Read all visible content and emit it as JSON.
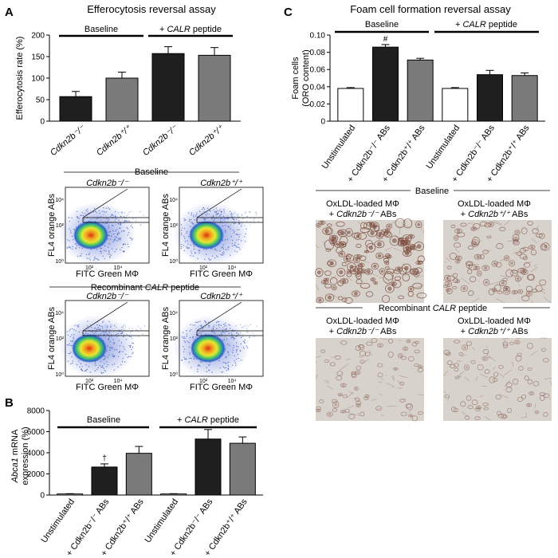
{
  "colors": {
    "dark_bar": "#1f1f1f",
    "gray_bar": "#7a7a7a",
    "white_bar": "#ffffff",
    "micro_bg": "#d8d2cc",
    "micro_stain": "#7a4a3a"
  },
  "panel_a": {
    "letter": "A",
    "title": "Efferocytosis reversal assay",
    "group_baseline": "Baseline",
    "group_peptide_prefix": "+ ",
    "group_peptide_gene": "CALR",
    "group_peptide_suffix": " peptide",
    "flow": {
      "baseline_header": "Baseline",
      "peptide_header_prefix": "Recombinant ",
      "peptide_header_gene": "CALR",
      "peptide_header_suffix": " peptide",
      "genotype_left": "Cdkn2b⁻/⁻",
      "genotype_right": "Cdkn2b⁺/⁺",
      "ylabel": "FL4 orange ABs",
      "xlabel": "FITC Green MΦ",
      "tick_104": "10⁴",
      "tick_102": "10²",
      "tick_100": "10⁰"
    }
  },
  "panel_b": {
    "letter": "B",
    "group_baseline": "Baseline",
    "group_peptide_prefix": "+ ",
    "group_peptide_gene": "CALR",
    "group_peptide_suffix": " peptide",
    "ylabel_gene": "Abca1",
    "ylabel_rest": " mRNA",
    "ylabel_line2": "expression (%)",
    "dagger": "†"
  },
  "panel_c": {
    "letter": "C",
    "title": "Foam cell formation reversal assay",
    "group_baseline": "Baseline",
    "group_peptide_prefix": "+ ",
    "group_peptide_gene": "CALR",
    "group_peptide_suffix": " peptide",
    "ylabel_line1": "Foam cells",
    "ylabel_line2": "(ORO content)",
    "hash": "#",
    "micro": {
      "baseline_header": "Baseline",
      "peptide_header_prefix": "Recombinant ",
      "peptide_header_gene": "CALR",
      "peptide_header_suffix": " peptide",
      "caption_line1": "OxLDL-loaded MΦ",
      "caption_left_line2_prefix": "+ ",
      "caption_left_line2_gene": "Cdkn2b⁻/⁻",
      "caption_left_line2_suffix": " ABs",
      "caption_right_line2_prefix": "+ ",
      "caption_right_line2_gene": "Cdkn2b⁺/⁺",
      "caption_right_line2_suffix": " ABs"
    }
  },
  "chart_data": [
    {
      "type": "bar",
      "panel": "A",
      "title": "Efferocytosis reversal assay",
      "ylabel": "Efferocytosis rate (%)",
      "ylim": [
        0,
        200
      ],
      "yticks": [
        "0",
        "50",
        "100",
        "150",
        "200"
      ],
      "categories": [
        "Cdkn2b⁻/⁻",
        "Cdkn2b⁺/⁺",
        "Cdkn2b⁻/⁻",
        "Cdkn2b⁺/⁺"
      ],
      "values": [
        57,
        100,
        157,
        153
      ],
      "errors": [
        12,
        14,
        16,
        18
      ],
      "bar_colors": [
        "#1f1f1f",
        "#7a7a7a",
        "#1f1f1f",
        "#7a7a7a"
      ],
      "groups": [
        "Baseline",
        "+ CALR peptide"
      ]
    },
    {
      "type": "bar",
      "panel": "B",
      "ylabel": "Abca1 mRNA expression (%)",
      "ylim": [
        0,
        8000
      ],
      "yticks": [
        "0",
        "2000",
        "4000",
        "6000",
        "8000"
      ],
      "categories": [
        "Unstimulated",
        "+ Cdkn2b⁻/⁻ ABs",
        "+ Cdkn2b⁺/⁺ ABs",
        "Unstimulated",
        "+ Cdkn2b⁻/⁻ ABs",
        "+ Cdkn2b⁺/⁺ ABs"
      ],
      "values": [
        100,
        2650,
        3950,
        100,
        5300,
        4900
      ],
      "errors": [
        30,
        300,
        650,
        30,
        900,
        600
      ],
      "bar_colors": [
        "#ffffff",
        "#1f1f1f",
        "#7a7a7a",
        "#ffffff",
        "#1f1f1f",
        "#7a7a7a"
      ],
      "groups": [
        "Baseline",
        "+ CALR peptide"
      ]
    },
    {
      "type": "bar",
      "panel": "C",
      "title": "Foam cell formation reversal assay",
      "ylabel": "Foam cells (ORO content)",
      "ylim": [
        0,
        0.1
      ],
      "yticks": [
        "0",
        "0.02",
        "0.04",
        "0.06",
        "0.08",
        "0.10"
      ],
      "categories": [
        "Unstimulated",
        "+ Cdkn2b⁻/⁻ ABs",
        "+ Cdkn2b⁺/⁺ ABs",
        "Unstimulated",
        "+ Cdkn2b⁻/⁻ ABs",
        "+ Cdkn2b⁺/⁺ ABs"
      ],
      "values": [
        0.038,
        0.086,
        0.071,
        0.038,
        0.054,
        0.053
      ],
      "errors": [
        0.001,
        0.003,
        0.002,
        0.001,
        0.005,
        0.003
      ],
      "bar_colors": [
        "#ffffff",
        "#1f1f1f",
        "#7a7a7a",
        "#ffffff",
        "#1f1f1f",
        "#7a7a7a"
      ],
      "groups": [
        "Baseline",
        "+ CALR peptide"
      ]
    }
  ]
}
